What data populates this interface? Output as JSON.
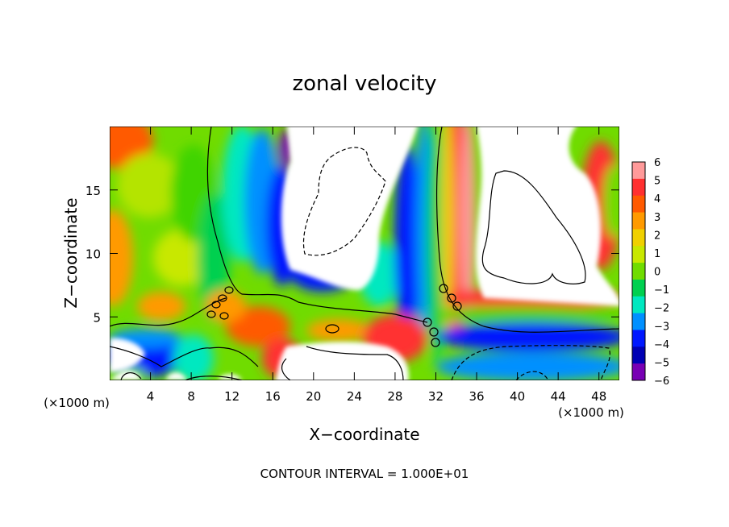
{
  "chart_data": {
    "type": "heatmap",
    "title": "zonal velocity",
    "xlabel": "X−coordinate",
    "ylabel": "Z−coordinate",
    "x_unit_left": "(×1000 m)",
    "x_unit_right": "(×1000 m)",
    "footer": "CONTOUR INTERVAL = 1.000E+01",
    "xlim": [
      0,
      50
    ],
    "ylim": [
      0,
      20
    ],
    "x_ticks": [
      "4",
      "8",
      "12",
      "16",
      "20",
      "24",
      "28",
      "32",
      "36",
      "40",
      "44",
      "48"
    ],
    "y_ticks": [
      "5",
      "10",
      "15"
    ],
    "colorbar": {
      "ticks": [
        "6",
        "5",
        "4",
        "3",
        "2",
        "1",
        "0",
        "−1",
        "−2",
        "−3",
        "−4",
        "−5",
        "−6"
      ],
      "colors": [
        "#ff9a9a",
        "#ff3030",
        "#ff5a00",
        "#ff9a00",
        "#f0d000",
        "#c8e800",
        "#70dc00",
        "#00d050",
        "#00e8c0",
        "#0090ff",
        "#0018ff",
        "#0000b4",
        "#7800b4"
      ],
      "range": [
        -6,
        6
      ]
    },
    "fields": [
      {
        "value": 2.5,
        "region": "upper-left corner"
      },
      {
        "value": 0.5,
        "region": "left interior"
      },
      {
        "value": -4.5,
        "region": "vertical band near x=16"
      },
      {
        "value": 99,
        "region": "upper center (off-scale, blank)"
      },
      {
        "value": -5,
        "region": "diagonal band x=28-32"
      },
      {
        "value": 4,
        "region": "vertical band x=33-35"
      },
      {
        "value": 99,
        "region": "upper right (off-scale, blank)"
      },
      {
        "value": -4,
        "region": "lower band z=1-4"
      },
      {
        "value": 99,
        "region": "lower center (off-scale, blank)"
      }
    ]
  }
}
